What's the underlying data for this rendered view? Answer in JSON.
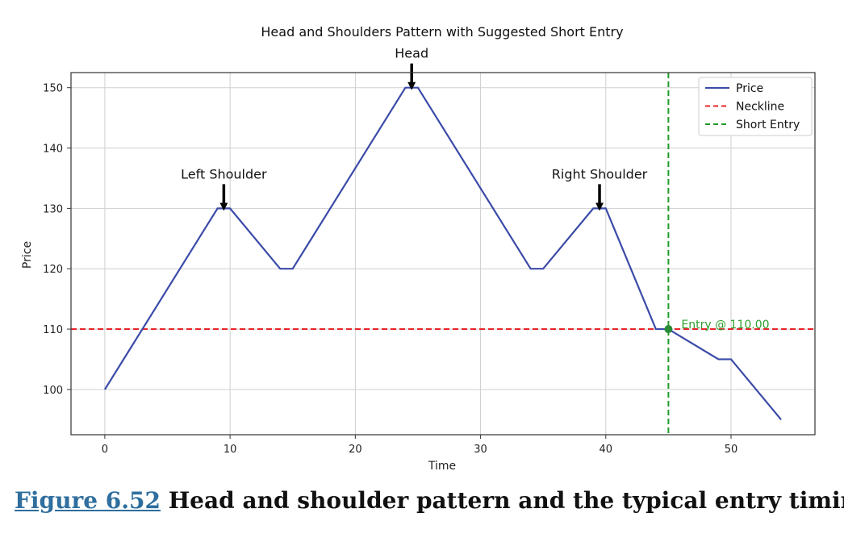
{
  "chart_data": {
    "type": "line",
    "title": "Head and Shoulders Pattern with Suggested Short Entry",
    "xlabel": "Time",
    "ylabel": "Price",
    "xlim": [
      -2.7,
      56.7
    ],
    "ylim": [
      92.5,
      152.5
    ],
    "xticks": [
      0,
      10,
      20,
      30,
      40,
      50
    ],
    "yticks": [
      100,
      110,
      120,
      130,
      140,
      150
    ],
    "grid": true,
    "legend_position": "top-right",
    "series": [
      {
        "name": "Price",
        "color": "#3b4ba8",
        "style": "solid",
        "points": [
          [
            0,
            100
          ],
          [
            9,
            130
          ],
          [
            10,
            130
          ],
          [
            14,
            120
          ],
          [
            15,
            120
          ],
          [
            24,
            150
          ],
          [
            25,
            150
          ],
          [
            34,
            120
          ],
          [
            35,
            120
          ],
          [
            39,
            130
          ],
          [
            40,
            130
          ],
          [
            44,
            110
          ],
          [
            45,
            110
          ],
          [
            49,
            105
          ],
          [
            50,
            105
          ],
          [
            54,
            95
          ]
        ]
      },
      {
        "name": "Neckline",
        "color": "#e8262b",
        "style": "dashed",
        "y": 110
      },
      {
        "name": "Short Entry",
        "color": "#1f9b2a",
        "style": "dashed",
        "x": 45
      }
    ],
    "entry_point": {
      "x": 45,
      "y": 110,
      "label": "Entry @ 110.00"
    },
    "annotations": [
      {
        "text": "Head",
        "x": 24.5,
        "y": 150
      },
      {
        "text": "Left Shoulder",
        "x": 9.5,
        "y": 130
      },
      {
        "text": "Right Shoulder",
        "x": 39.5,
        "y": 130
      }
    ]
  },
  "caption": {
    "link": "Figure 6.52",
    "text": " Head and shoulder pattern and the typical entry timing."
  }
}
